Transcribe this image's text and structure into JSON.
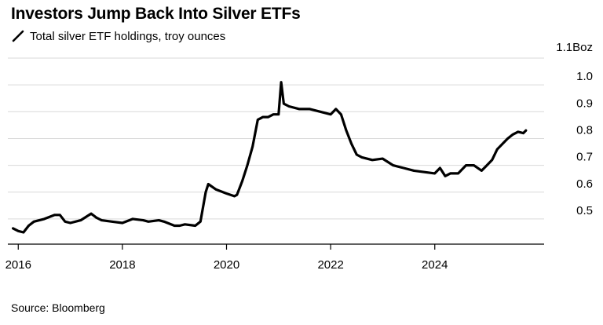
{
  "header": {
    "title": "Investors Jump Back Into Silver ETFs",
    "legend_label": "Total silver ETF holdings, troy ounces"
  },
  "footer": {
    "source": "Source: Bloomberg"
  },
  "colors": {
    "line": "#000000",
    "grid": "#d9d9d9",
    "axis": "#000000"
  },
  "chart_data": {
    "type": "line",
    "title": "Investors Jump Back Into Silver ETFs",
    "subtitle": "Total silver ETF holdings, troy ounces",
    "series": [
      {
        "name": "Total silver ETF holdings, troy ounces",
        "x": [
          2015.9,
          2016.0,
          2016.1,
          2016.2,
          2016.3,
          2016.5,
          2016.7,
          2016.8,
          2016.9,
          2017.0,
          2017.2,
          2017.4,
          2017.5,
          2017.6,
          2017.8,
          2018.0,
          2018.2,
          2018.4,
          2018.5,
          2018.7,
          2018.8,
          2019.0,
          2019.1,
          2019.2,
          2019.4,
          2019.5,
          2019.6,
          2019.65,
          2019.8,
          2020.0,
          2020.15,
          2020.2,
          2020.3,
          2020.4,
          2020.5,
          2020.6,
          2020.7,
          2020.8,
          2020.9,
          2021.0,
          2021.05,
          2021.1,
          2021.2,
          2021.4,
          2021.6,
          2021.8,
          2022.0,
          2022.1,
          2022.2,
          2022.3,
          2022.4,
          2022.5,
          2022.6,
          2022.8,
          2023.0,
          2023.2,
          2023.4,
          2023.6,
          2023.8,
          2024.0,
          2024.1,
          2024.2,
          2024.3,
          2024.45,
          2024.6,
          2024.75,
          2024.9,
          2025.0,
          2025.1,
          2025.2,
          2025.3,
          2025.4,
          2025.5,
          2025.6,
          2025.7,
          2025.75
        ],
        "y": [
          0.465,
          0.455,
          0.45,
          0.475,
          0.49,
          0.5,
          0.515,
          0.515,
          0.49,
          0.485,
          0.495,
          0.52,
          0.505,
          0.495,
          0.49,
          0.485,
          0.5,
          0.495,
          0.49,
          0.495,
          0.49,
          0.475,
          0.475,
          0.48,
          0.475,
          0.49,
          0.6,
          0.63,
          0.61,
          0.595,
          0.585,
          0.59,
          0.64,
          0.7,
          0.77,
          0.87,
          0.88,
          0.88,
          0.89,
          0.89,
          1.01,
          0.93,
          0.92,
          0.91,
          0.91,
          0.9,
          0.89,
          0.91,
          0.89,
          0.83,
          0.78,
          0.74,
          0.73,
          0.72,
          0.725,
          0.7,
          0.69,
          0.68,
          0.675,
          0.67,
          0.69,
          0.66,
          0.67,
          0.67,
          0.7,
          0.7,
          0.68,
          0.7,
          0.72,
          0.76,
          0.78,
          0.8,
          0.815,
          0.825,
          0.82,
          0.83
        ]
      }
    ],
    "x_ticks": [
      "2016",
      "2018",
      "2020",
      "2022",
      "2024"
    ],
    "x_tick_values": [
      2016,
      2018,
      2020,
      2022,
      2024
    ],
    "y_ticks": [
      "0.5",
      "0.6",
      "0.7",
      "0.8",
      "0.9",
      "1.0",
      "1.1Boz"
    ],
    "y_tick_values": [
      0.5,
      0.6,
      0.7,
      0.8,
      0.9,
      1.0,
      1.1
    ],
    "xlim": [
      2015.8,
      2026.1
    ],
    "ylim": [
      0.45,
      1.1
    ],
    "grid": true,
    "xlabel": "",
    "ylabel": ""
  }
}
